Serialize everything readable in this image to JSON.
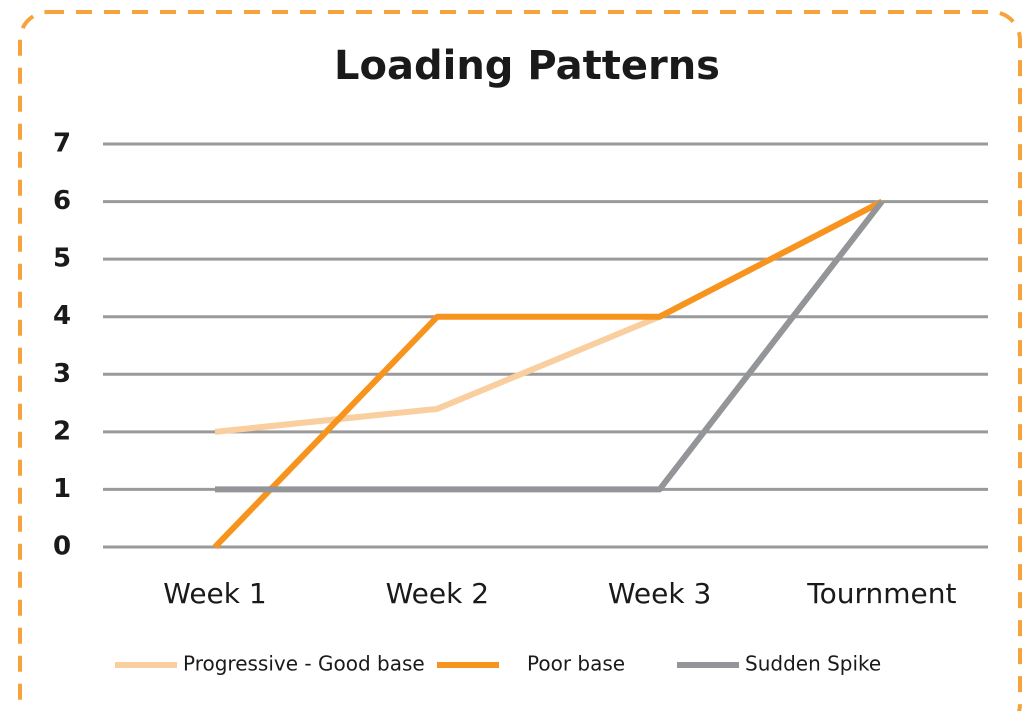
{
  "chart_data": {
    "type": "line",
    "title": "Loading Patterns",
    "categories": [
      "Week 1",
      "Week 2",
      "Week 3",
      "Tournment"
    ],
    "series": [
      {
        "name": "Progressive - Good base",
        "color": "#f9cf9f",
        "values": [
          2,
          2.4,
          4,
          6
        ]
      },
      {
        "name": "Poor base",
        "color": "#f7941d",
        "values": [
          0,
          4,
          4,
          6
        ]
      },
      {
        "name": "Sudden Spike",
        "color": "#939598",
        "values": [
          1,
          1,
          1,
          6
        ]
      }
    ],
    "ylim": [
      0,
      7
    ],
    "yticks": [
      0,
      1,
      2,
      3,
      4,
      5,
      6,
      7
    ],
    "grid": true,
    "legend": "bottom"
  }
}
